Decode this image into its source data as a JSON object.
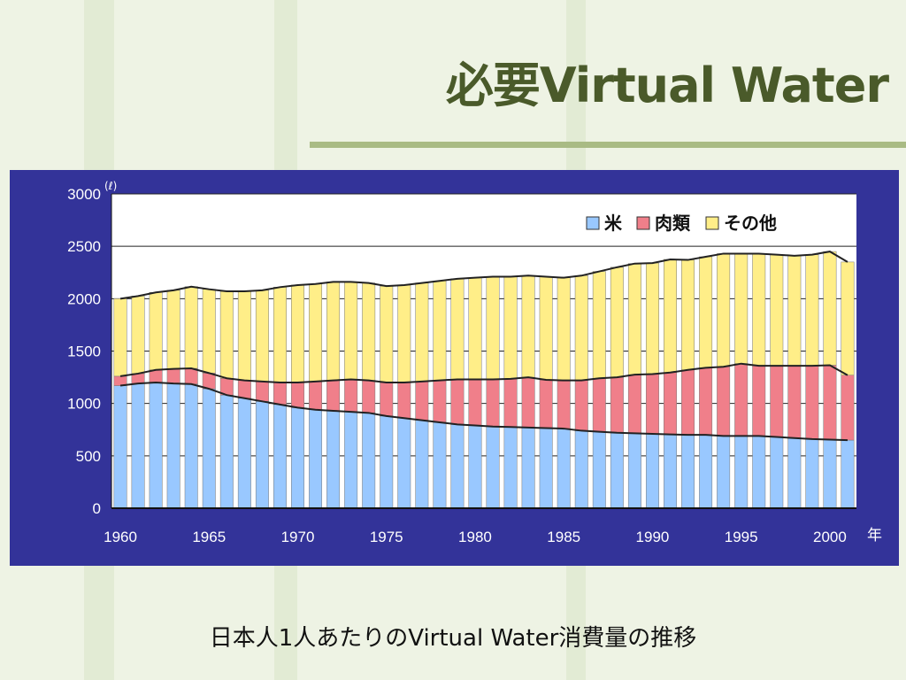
{
  "slide": {
    "title": "必要Virtual Water",
    "caption": "日本人1人あたりのVirtual Water消費量の推移"
  },
  "chart_data": {
    "type": "bar",
    "stacked": true,
    "unit_label": "(ℓ)",
    "x_unit_label": "年",
    "x": [
      1960,
      1961,
      1962,
      1963,
      1964,
      1965,
      1966,
      1967,
      1968,
      1969,
      1970,
      1971,
      1972,
      1973,
      1974,
      1975,
      1976,
      1977,
      1978,
      1979,
      1980,
      1981,
      1982,
      1983,
      1984,
      1985,
      1986,
      1987,
      1988,
      1989,
      1990,
      1991,
      1992,
      1993,
      1994,
      1995,
      1996,
      1997,
      1998,
      1999,
      2000,
      2001
    ],
    "x_ticks": [
      1960,
      1965,
      1970,
      1975,
      1980,
      1985,
      1990,
      1995,
      2000
    ],
    "ylim": [
      0,
      3000
    ],
    "y_ticks": [
      0,
      500,
      1000,
      1500,
      2000,
      2500,
      3000
    ],
    "legend_position": "top-right",
    "series": [
      {
        "name": "米",
        "color": "#99c8ff",
        "values": [
          1170,
          1190,
          1200,
          1190,
          1185,
          1140,
          1080,
          1050,
          1020,
          990,
          960,
          940,
          930,
          920,
          910,
          880,
          860,
          840,
          820,
          800,
          790,
          780,
          775,
          770,
          765,
          760,
          740,
          730,
          720,
          715,
          710,
          705,
          700,
          700,
          690,
          690,
          690,
          680,
          670,
          660,
          655,
          650
        ]
      },
      {
        "name": "肉類",
        "color": "#f07f8a",
        "values": [
          90,
          95,
          120,
          140,
          150,
          150,
          160,
          170,
          190,
          210,
          240,
          270,
          290,
          310,
          310,
          320,
          340,
          370,
          400,
          430,
          440,
          450,
          460,
          480,
          460,
          460,
          480,
          510,
          530,
          560,
          570,
          590,
          620,
          640,
          660,
          690,
          670,
          680,
          690,
          700,
          710,
          620
        ]
      },
      {
        "name": "その他",
        "color": "#ffee88",
        "values": [
          740,
          740,
          740,
          750,
          780,
          800,
          830,
          850,
          870,
          910,
          930,
          930,
          940,
          930,
          930,
          920,
          930,
          940,
          950,
          960,
          970,
          980,
          975,
          970,
          985,
          980,
          1000,
          1020,
          1050,
          1060,
          1060,
          1080,
          1050,
          1060,
          1080,
          1050,
          1070,
          1060,
          1050,
          1060,
          1085,
          1080
        ]
      }
    ]
  }
}
